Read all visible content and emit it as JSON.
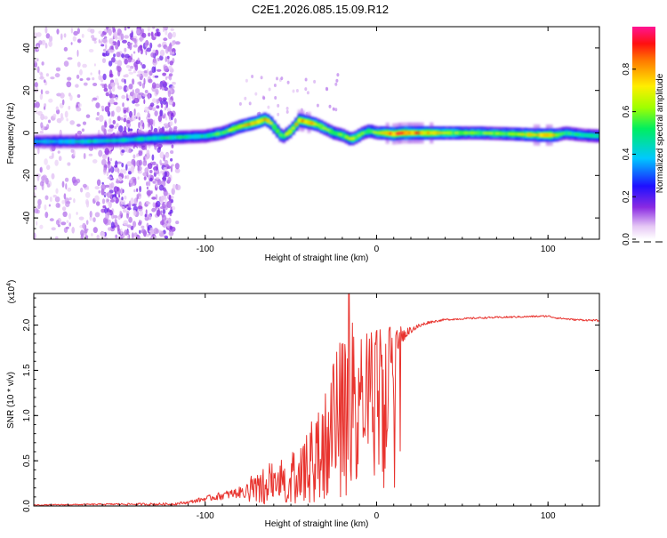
{
  "title": "C2E1.2026.085.15.09.R12",
  "chart_data": [
    {
      "type": "heatmap",
      "name": "spectrogram",
      "xlabel": "Height of straight line (km)",
      "ylabel": "Frequency (Hz)",
      "xlim": [
        -200,
        130
      ],
      "ylim": [
        -50,
        50
      ],
      "xticks": [
        -100,
        0,
        100
      ],
      "xtick_labels": [
        "-100",
        "0",
        "100"
      ],
      "yticks": [
        -40,
        -20,
        0,
        20,
        40
      ],
      "ytick_labels": [
        "-40",
        "-20",
        "0",
        "20",
        "40"
      ],
      "colorbar": {
        "label": "Normalized spectral amplitude",
        "range": [
          0,
          1
        ],
        "ticks": [
          0.0,
          0.2,
          0.4,
          0.6,
          0.8
        ],
        "tick_labels": [
          "0.0",
          "0.2",
          "0.4",
          "0.6",
          "0.8"
        ],
        "colormap": "rainbow (white-purple-blue-cyan-green-yellow-red-magenta)"
      },
      "ridge": {
        "x": [
          -200,
          -170,
          -150,
          -130,
          -115,
          -100,
          -90,
          -80,
          -70,
          -65,
          -62,
          -58,
          -55,
          -50,
          -45,
          -40,
          -35,
          -30,
          -25,
          -20,
          -15,
          -12,
          -8,
          -4,
          0,
          5,
          10,
          15,
          20,
          40,
          60,
          80,
          95,
          100,
          105,
          110,
          120,
          130
        ],
        "y": [
          -4,
          -4,
          -3.5,
          -2.5,
          -2,
          -1.5,
          0,
          3,
          5,
          6.5,
          5,
          1,
          -2,
          1,
          6,
          5,
          4,
          2,
          0,
          -1,
          -3,
          -2,
          0,
          1,
          0,
          0,
          -0.5,
          0,
          0,
          0,
          0,
          -0.5,
          -1,
          -1,
          -1,
          0,
          -1,
          -1.5
        ]
      },
      "intensity": [
        0.4,
        0.45,
        0.45,
        0.5,
        0.5,
        0.5,
        0.6,
        0.75,
        0.8,
        0.8,
        0.7,
        0.6,
        0.6,
        0.8,
        0.85,
        0.8,
        0.7,
        0.65,
        0.6,
        0.65,
        0.7,
        0.65,
        0.6,
        0.6,
        0.7,
        0.8,
        0.9,
        0.95,
        0.9,
        0.7,
        0.6,
        0.65,
        0.8,
        0.9,
        0.6,
        0.55,
        0.5,
        0.5
      ]
    },
    {
      "type": "line",
      "name": "snr",
      "xlabel": "Height of straight line (km)",
      "ylabel": "SNR (10 * v/v)",
      "multiplier": "(x10⁴)",
      "xlim": [
        -200,
        130
      ],
      "ylim": [
        0,
        2.35
      ],
      "xticks": [
        -100,
        0,
        100
      ],
      "xtick_labels": [
        "-100",
        "0",
        "100"
      ],
      "yticks": [
        0.0,
        0.5,
        1.0,
        1.5,
        2.0
      ],
      "ytick_labels": [
        "0.0",
        "0.5",
        "1.0",
        "1.5",
        "2.0"
      ],
      "color": "#e8332e",
      "envelope": {
        "x": [
          -200,
          -150,
          -120,
          -110,
          -100,
          -80,
          -65,
          -50,
          -40,
          -30,
          -25,
          -20,
          -15,
          -10,
          -5,
          0,
          10,
          20,
          30,
          40,
          60,
          80,
          100,
          105,
          115,
          130
        ],
        "base": [
          0.01,
          0.02,
          0.02,
          0.04,
          0.08,
          0.15,
          0.2,
          0.25,
          0.35,
          0.55,
          0.7,
          0.9,
          1.15,
          1.3,
          1.45,
          1.6,
          1.8,
          1.95,
          2.03,
          2.06,
          2.08,
          2.09,
          2.1,
          2.08,
          2.06,
          2.05
        ],
        "noise": [
          0.01,
          0.02,
          0.03,
          0.03,
          0.06,
          0.12,
          0.25,
          0.35,
          0.6,
          0.8,
          0.9,
          1.0,
          0.9,
          0.7,
          0.5,
          0.35,
          0.2,
          0.08,
          0.03,
          0.02,
          0.02,
          0.02,
          0.02,
          0.02,
          0.02,
          0.02
        ]
      }
    }
  ]
}
